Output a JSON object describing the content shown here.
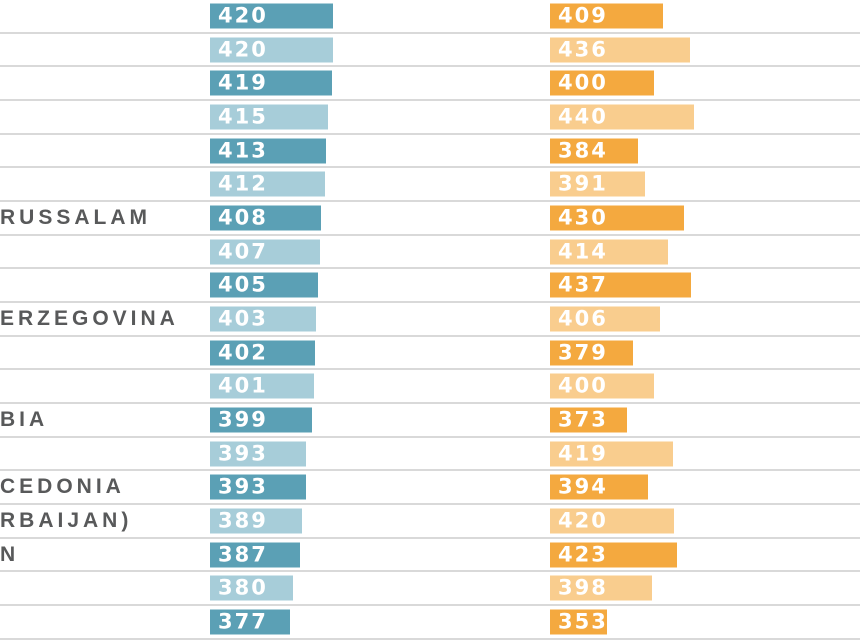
{
  "chart_data": {
    "type": "bar",
    "orientation": "horizontal",
    "title": "",
    "xlabel": "",
    "ylabel": "",
    "xlim": [
      297,
      450
    ],
    "grid": "horizontal-separators",
    "legend": "none (cropped out of view)",
    "note": "Screenshot is a cropped horizontal dual-bar chart; row labels are cut off at the left edge. Only visible label fragments are recorded.",
    "series": [
      {
        "name": "blue-series",
        "color_dark": "#5ba0b5",
        "color_light": "#a7cdd9"
      },
      {
        "name": "orange-series",
        "color_dark": "#f4a93f",
        "color_light": "#f9cd8e"
      }
    ],
    "rows": [
      {
        "label": "",
        "blue": 420,
        "orange": 409,
        "shade": "dark"
      },
      {
        "label": "",
        "blue": 420,
        "orange": 436,
        "shade": "light"
      },
      {
        "label": "",
        "blue": 419,
        "orange": 400,
        "shade": "dark"
      },
      {
        "label": "",
        "blue": 415,
        "orange": 440,
        "shade": "light"
      },
      {
        "label": "",
        "blue": 413,
        "orange": 384,
        "shade": "dark"
      },
      {
        "label": "",
        "blue": 412,
        "orange": 391,
        "shade": "light"
      },
      {
        "label": "RUSSALAM",
        "blue": 408,
        "orange": 430,
        "shade": "dark"
      },
      {
        "label": "",
        "blue": 407,
        "orange": 414,
        "shade": "light"
      },
      {
        "label": "",
        "blue": 405,
        "orange": 437,
        "shade": "dark"
      },
      {
        "label": "ERZEGOVINA",
        "blue": 403,
        "orange": 406,
        "shade": "light"
      },
      {
        "label": "",
        "blue": 402,
        "orange": 379,
        "shade": "dark"
      },
      {
        "label": "",
        "blue": 401,
        "orange": 400,
        "shade": "light"
      },
      {
        "label": "BIA",
        "blue": 399,
        "orange": 373,
        "shade": "dark"
      },
      {
        "label": "",
        "blue": 393,
        "orange": 419,
        "shade": "light"
      },
      {
        "label": "CEDONIA",
        "blue": 393,
        "orange": 394,
        "shade": "dark"
      },
      {
        "label": "RBAIJAN)",
        "blue": 389,
        "orange": 420,
        "shade": "light"
      },
      {
        "label": "N",
        "blue": 387,
        "orange": 423,
        "shade": "dark"
      },
      {
        "label": "",
        "blue": 380,
        "orange": 398,
        "shade": "light"
      },
      {
        "label": "",
        "blue": 377,
        "orange": 353,
        "shade": "dark"
      }
    ]
  },
  "colors": {
    "background": "#ffffff",
    "gridline": "#d9d9d9",
    "row_label_text": "#58595a",
    "bar_value_text": "#ffffff",
    "blue_dark": "#5ba0b5",
    "blue_light": "#a7cdd9",
    "orange_dark": "#f4a93f",
    "orange_light": "#f9cd8e"
  }
}
